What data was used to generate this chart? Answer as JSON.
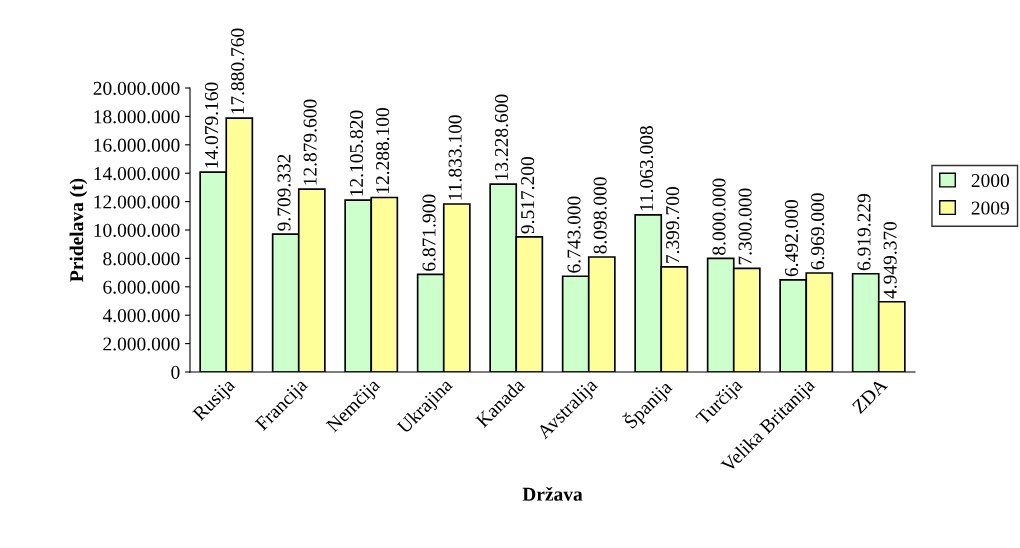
{
  "chart_data": {
    "type": "bar",
    "xlabel": "Država",
    "ylabel": "Pridelava (t)",
    "categories": [
      "Rusija",
      "Francija",
      "Nemčija",
      "Ukrajina",
      "Kanada",
      "Avstralija",
      "Španija",
      "Turčija",
      "Velika Britanija",
      "ZDA"
    ],
    "series": [
      {
        "name": "2000",
        "color": "#ccffcc",
        "values": [
          14079160,
          9709332,
          12105820,
          6871900,
          13228600,
          6743000,
          11063008,
          8000000,
          6492000,
          6919229
        ],
        "value_labels": [
          "14.079.160",
          "9.709.332",
          "12.105.820",
          "6.871.900",
          "13.228.600",
          "6.743.000",
          "11.063.008",
          "8.000.000",
          "6.492.000",
          "6.919.229"
        ]
      },
      {
        "name": "2009",
        "color": "#ffff99",
        "values": [
          17880760,
          12879600,
          12288100,
          11833100,
          9517200,
          8098000,
          7399700,
          7300000,
          6969000,
          4949370
        ],
        "value_labels": [
          "17.880.760",
          "12.879.600",
          "12.288.100",
          "11.833.100",
          "9.517.200",
          "8.098.000",
          "7.399.700",
          "7.300.000",
          "6.969.000",
          "4.949.370"
        ]
      }
    ],
    "ylim": [
      0,
      20000000
    ],
    "yticks": [
      0,
      {
        "value": 2000000,
        "label": "2.000.000"
      },
      {
        "value": 4000000,
        "label": "4.000.000"
      },
      {
        "value": 6000000,
        "label": "6.000.000"
      },
      {
        "value": 8000000,
        "label": "8.000.000"
      },
      {
        "value": 10000000,
        "label": "10.000.000"
      },
      {
        "value": 12000000,
        "label": "12.000.000"
      },
      {
        "value": 14000000,
        "label": "14.000.000"
      },
      {
        "value": 16000000,
        "label": "16.000.000"
      },
      {
        "value": 18000000,
        "label": "18.000.000"
      },
      {
        "value": 20000000,
        "label": "20.000.000"
      }
    ],
    "legend": "right",
    "grid": false
  }
}
